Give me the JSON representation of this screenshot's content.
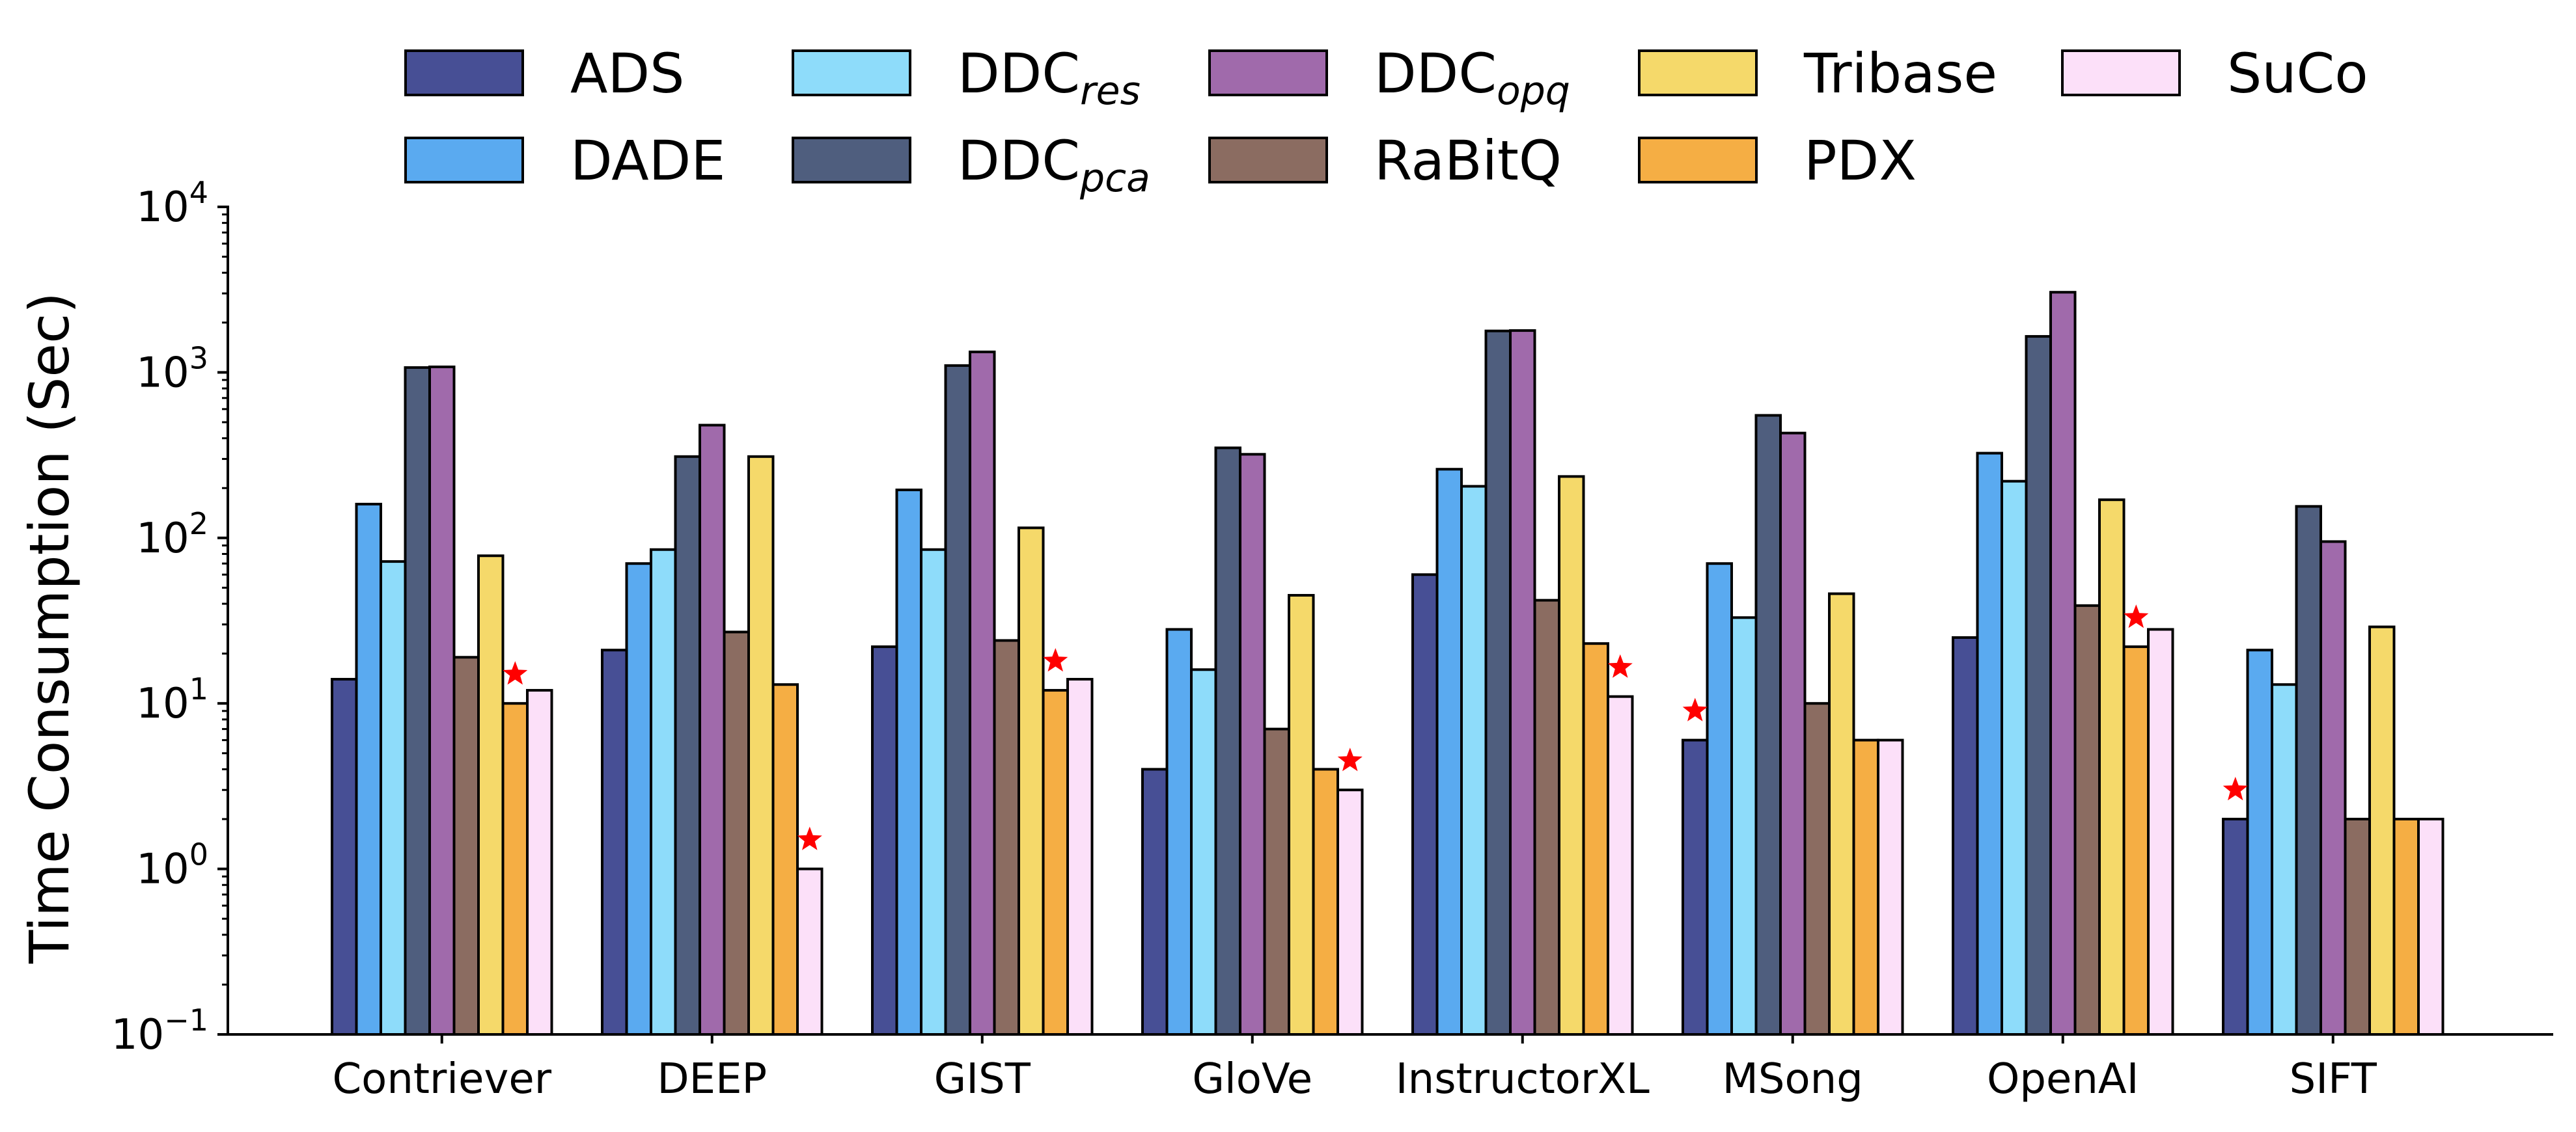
{
  "chart_data": {
    "type": "bar",
    "title": "",
    "xlabel": "",
    "ylabel": "Time Consumption (Sec)",
    "yscale": "log",
    "ylim": [
      0.1,
      10000
    ],
    "y_ticks": [
      {
        "base": "10",
        "exp": "−1",
        "value": 0.1
      },
      {
        "base": "10",
        "exp": "0",
        "value": 1
      },
      {
        "base": "10",
        "exp": "1",
        "value": 10
      },
      {
        "base": "10",
        "exp": "2",
        "value": 100
      },
      {
        "base": "10",
        "exp": "3",
        "value": 1000
      },
      {
        "base": "10",
        "exp": "4",
        "value": 10000
      }
    ],
    "grid": false,
    "legend_position": "top",
    "categories": [
      "Contriever",
      "DEEP",
      "GIST",
      "GloVe",
      "InstructorXL",
      "MSong",
      "OpenAI",
      "SIFT"
    ],
    "series": [
      {
        "name": "ADS",
        "name_main": "ADS",
        "name_sub": "",
        "color": "#474F95",
        "values": [
          14,
          21,
          22,
          4,
          60,
          6,
          25,
          2
        ]
      },
      {
        "name": "DADE",
        "name_main": "DADE",
        "name_sub": "",
        "color": "#5AAAF0",
        "values": [
          160,
          70,
          195,
          28,
          260,
          70,
          325,
          21
        ]
      },
      {
        "name": "DDCres",
        "name_main": "DDC",
        "name_sub": "res",
        "color": "#8EDCFA",
        "values": [
          72,
          85,
          85,
          16,
          205,
          33,
          220,
          13
        ]
      },
      {
        "name": "DDCpca",
        "name_main": "DDC",
        "name_sub": "pca",
        "color": "#4F5E7E",
        "values": [
          1070,
          310,
          1100,
          350,
          1780,
          550,
          1650,
          155
        ]
      },
      {
        "name": "DDCopq",
        "name_main": "DDC",
        "name_sub": "opq",
        "color": "#A06AAB",
        "values": [
          1080,
          480,
          1330,
          320,
          1790,
          430,
          3050,
          95
        ]
      },
      {
        "name": "RaBitQ",
        "name_main": "RaBitQ",
        "name_sub": "",
        "color": "#8B6C61",
        "values": [
          19,
          27,
          24,
          7,
          42,
          10,
          39,
          2
        ]
      },
      {
        "name": "Tribase",
        "name_main": "Tribase",
        "name_sub": "",
        "color": "#F5D96A",
        "values": [
          78,
          310,
          115,
          45,
          235,
          46,
          170,
          29
        ]
      },
      {
        "name": "PDX",
        "name_main": "PDX",
        "name_sub": "",
        "color": "#F5AE44",
        "values": [
          10,
          13,
          12,
          4,
          23,
          6,
          22,
          2
        ]
      },
      {
        "name": "SuCo",
        "name_main": "SuCo",
        "name_sub": "",
        "color": "#FCE0F9",
        "values": [
          12,
          1,
          14,
          3,
          11,
          6,
          28,
          2
        ]
      }
    ],
    "annotations": [
      {
        "category": "Contriever",
        "series": "PDX",
        "marker": "red-star"
      },
      {
        "category": "DEEP",
        "series": "SuCo",
        "marker": "red-star"
      },
      {
        "category": "GIST",
        "series": "PDX",
        "marker": "red-star"
      },
      {
        "category": "GloVe",
        "series": "SuCo",
        "marker": "red-star"
      },
      {
        "category": "InstructorXL",
        "series": "SuCo",
        "marker": "red-star"
      },
      {
        "category": "MSong",
        "series": "ADS",
        "marker": "red-star"
      },
      {
        "category": "OpenAI",
        "series": "PDX",
        "marker": "red-star"
      },
      {
        "category": "SIFT",
        "series": "ADS",
        "marker": "red-star"
      }
    ],
    "marker_color": "#FF0000"
  }
}
